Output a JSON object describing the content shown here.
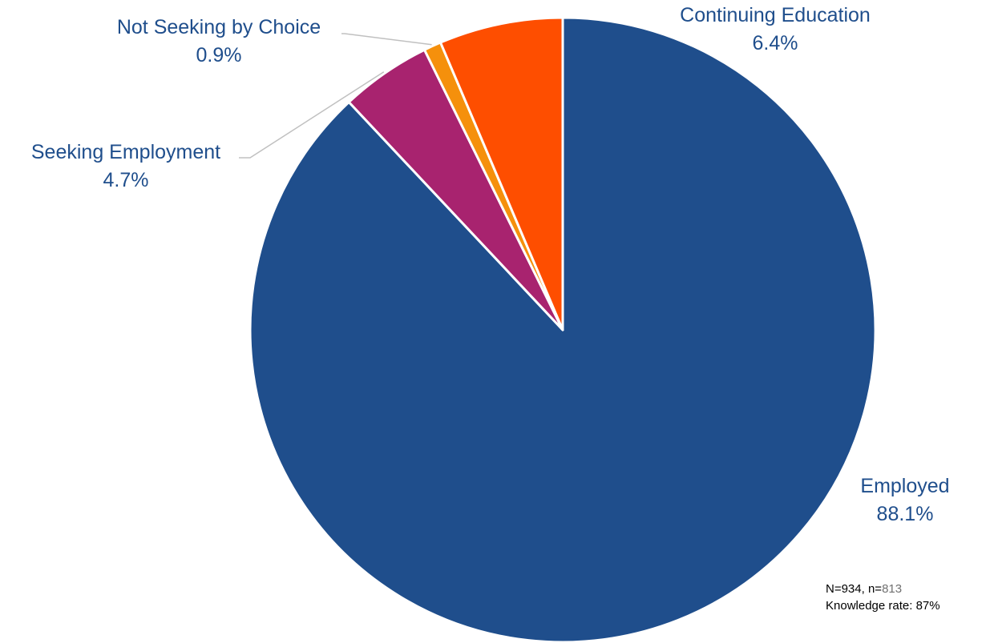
{
  "chart_data": {
    "type": "pie",
    "start_angle_deg": 0,
    "direction": "clockwise",
    "slices": [
      {
        "label": "Employed",
        "value": 88.1,
        "value_label": "88.1%",
        "color": "#1f4e8c"
      },
      {
        "label": "Seeking Employment",
        "value": 4.7,
        "value_label": "4.7%",
        "color": "#a8236f"
      },
      {
        "label": "Not Seeking by Choice",
        "value": 0.9,
        "value_label": "0.9%",
        "color": "#f5900c"
      },
      {
        "label": "Continuing Education",
        "value": 6.4,
        "value_label": "6.4%",
        "color": "#fe4e00"
      }
    ],
    "leader_line_color": "#c0c0c0",
    "label_color": "#1f4e8c"
  },
  "note": {
    "N_text": "N=934, n=",
    "n_value": "813",
    "knowledge_rate": "Knowledge rate: 87%"
  }
}
